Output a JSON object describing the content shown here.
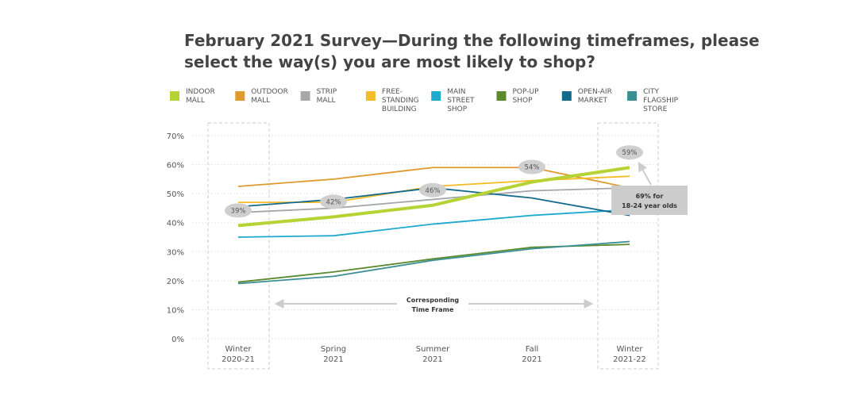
{
  "chart_data": {
    "type": "line",
    "title": "February 2021 Survey—During the following timeframes, please\nselect the way(s) you are most likely to shop?",
    "categories": [
      "Winter\n2020-21",
      "Spring\n2021",
      "Summer\n2021",
      "Fall\n2021",
      "Winter\n2021-22"
    ],
    "series": [
      {
        "name": "INDOOR\nMALL",
        "color": "#b5d334",
        "values": [
          39,
          42,
          46,
          54,
          59
        ],
        "value_labels": [
          "39%",
          "42%",
          "46%",
          "54%",
          "59%"
        ]
      },
      {
        "name": "OUTDOOR\nMALL",
        "color": "#de9a2e",
        "values": [
          52.5,
          55,
          59,
          59,
          52
        ]
      },
      {
        "name": "STRIP\nMALL",
        "color": "#a5a7aa",
        "values": [
          43.5,
          45,
          48,
          51,
          52
        ]
      },
      {
        "name": "FREE-\nSTANDING\nBUILDING",
        "color": "#f4bc27",
        "values": [
          47,
          47,
          52.5,
          54.5,
          56
        ]
      },
      {
        "name": "MAIN\nSTREET\nSHOP",
        "color": "#1fa9cf",
        "values": [
          35,
          35.5,
          39.5,
          42.5,
          44.5
        ]
      },
      {
        "name": "POP-UP\nSHOP",
        "color": "#5c8a2e",
        "values": [
          19.5,
          23,
          27.5,
          31.5,
          32.5
        ]
      },
      {
        "name": "OPEN-AIR\nMARKET",
        "color": "#136a8a",
        "values": [
          45.5,
          48,
          52,
          48.5,
          42.5
        ]
      },
      {
        "name": "CITY\nFLAGSHIP\nSTORE",
        "color": "#3a8f94",
        "values": [
          19,
          21.5,
          27,
          31,
          33.5
        ]
      }
    ],
    "ylim": [
      0,
      70
    ],
    "yticks": [
      {
        "value": 0,
        "label": "0%"
      },
      {
        "value": 10,
        "label": "10%"
      },
      {
        "value": 20,
        "label": "20%"
      },
      {
        "value": 30,
        "label": "30%"
      },
      {
        "value": 40,
        "label": "40%"
      },
      {
        "value": 50,
        "label": "50%"
      },
      {
        "value": 60,
        "label": "60%"
      },
      {
        "value": 70,
        "label": "70%"
      }
    ],
    "grid": true,
    "annotations": {
      "callout": "69% for\n18-24 year olds",
      "time_frame": "Corresponding\nTime Frame"
    }
  }
}
